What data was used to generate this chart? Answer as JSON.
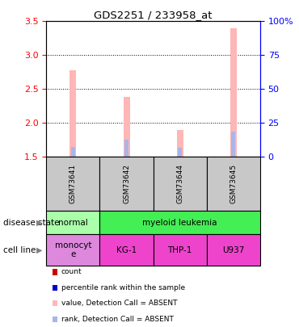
{
  "title": "GDS2251 / 233958_at",
  "samples": [
    "GSM73641",
    "GSM73642",
    "GSM73644",
    "GSM73645"
  ],
  "values": [
    2.78,
    2.38,
    1.9,
    3.4
  ],
  "ranks": [
    1.65,
    1.75,
    1.63,
    1.87
  ],
  "ylim_left": [
    1.5,
    3.5
  ],
  "ylim_right": [
    0,
    100
  ],
  "yticks_left": [
    1.5,
    2.0,
    2.5,
    3.0,
    3.5
  ],
  "yticks_right": [
    0,
    25,
    50,
    75,
    100
  ],
  "ytick_labels_right": [
    "0",
    "25",
    "50",
    "75",
    "100%"
  ],
  "disease_state_normal_color": "#aaffaa",
  "disease_state_leukemia_color": "#44ee55",
  "cell_line_color": "#ee44cc",
  "cell_line_monocyte_color": "#dd88dd",
  "bar_color": "#ffb6b6",
  "rank_bar_color": "#aab4e8",
  "legend_items": [
    {
      "color": "#cc0000",
      "label": "count"
    },
    {
      "color": "#0000cc",
      "label": "percentile rank within the sample"
    },
    {
      "color": "#ffb6b6",
      "label": "value, Detection Call = ABSENT"
    },
    {
      "color": "#aab4e8",
      "label": "rank, Detection Call = ABSENT"
    }
  ],
  "sample_box_color": "#c8c8c8",
  "bar_width": 0.12,
  "rank_bar_width": 0.08
}
